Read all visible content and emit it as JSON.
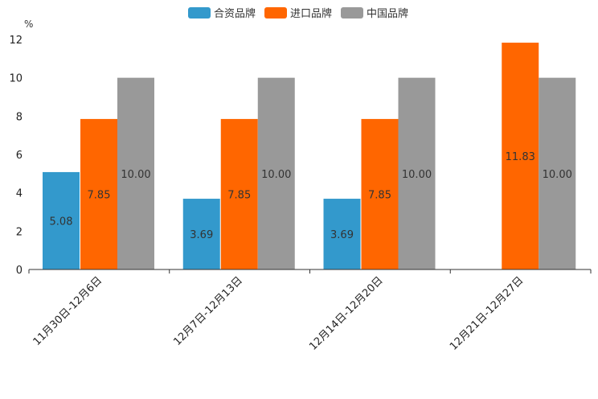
{
  "chart_data": {
    "type": "bar",
    "unit": "%",
    "categories": [
      "11月30日-12月6日",
      "12月7日-12月13日",
      "12月14日-12月20日",
      "12月21日-12月27日"
    ],
    "series": [
      {
        "name": "合资品牌",
        "color": "#3399cc",
        "values": [
          5.08,
          3.69,
          3.69,
          null
        ],
        "labels": [
          "5.08",
          "3.69",
          "3.69",
          null
        ]
      },
      {
        "name": "进口品牌",
        "color": "#ff6600",
        "values": [
          7.85,
          7.85,
          7.85,
          11.83
        ],
        "labels": [
          "7.85",
          "7.85",
          "7.85",
          "11.83"
        ]
      },
      {
        "name": "中国品牌",
        "color": "#999999",
        "values": [
          10.0,
          10.0,
          10.0,
          10.0
        ],
        "labels": [
          "10.00",
          "10.00",
          "10.00",
          "10.00"
        ]
      }
    ],
    "y_ticks": [
      "0",
      "2",
      "4",
      "6",
      "8",
      "10",
      "12"
    ],
    "ylim": [
      0,
      12
    ],
    "legend_position": "top-center",
    "grid": false
  }
}
